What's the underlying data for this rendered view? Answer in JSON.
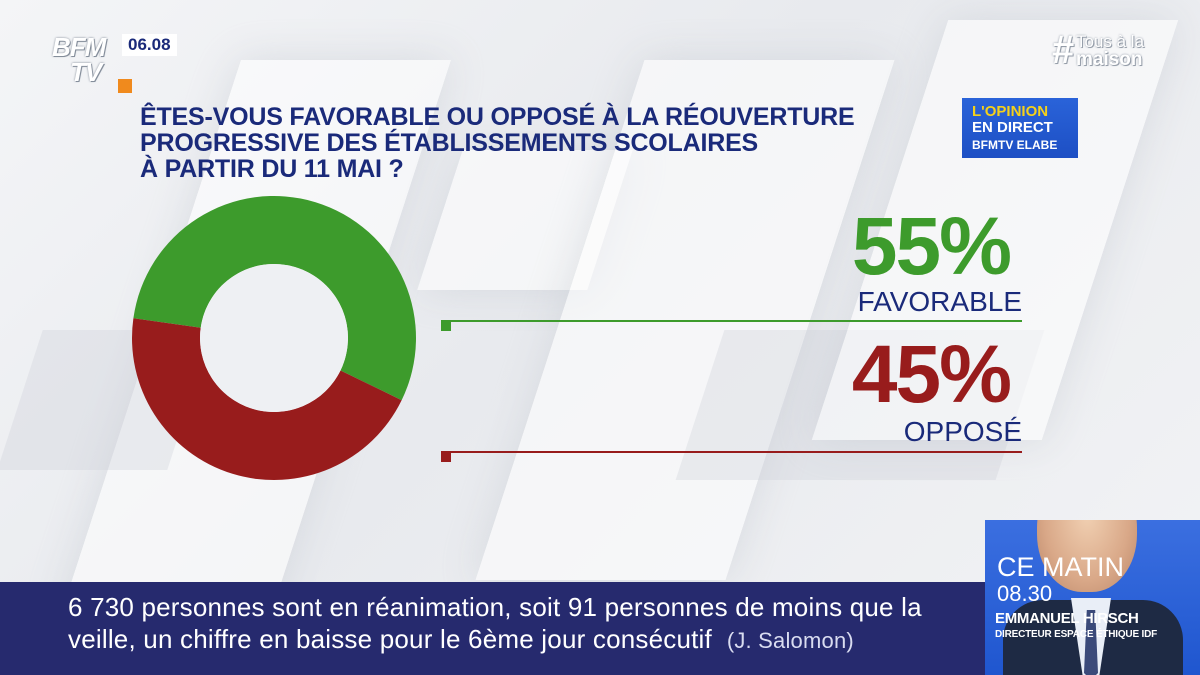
{
  "channel": {
    "logo_line1": "BFM",
    "logo_line2": "TV",
    "clock": "06.08"
  },
  "hashtag": {
    "symbol": "#",
    "line1": "Tous à la",
    "line2": "maison"
  },
  "question": {
    "lines": [
      "ÊTES-VOUS FAVORABLE OU OPPOSÉ À LA RÉOUVERTURE",
      "PROGRESSIVE DES ÉTABLISSEMENTS SCOLAIRES",
      "À PARTIR DU 11 MAI ?"
    ]
  },
  "badge": {
    "line1": "L'OPINION",
    "line2": "EN DIRECT",
    "line3": "BFMTV ELABE"
  },
  "chart_data": {
    "type": "pie",
    "title": "ÊTES-VOUS FAVORABLE OU OPPOSÉ À LA RÉOUVERTURE PROGRESSIVE DES ÉTABLISSEMENTS SCOLAIRES À PARTIR DU 11 MAI ?",
    "categories": [
      "FAVORABLE",
      "OPPOSÉ"
    ],
    "values": [
      55,
      45
    ],
    "value_labels": [
      "55%",
      "45%"
    ],
    "colors": [
      "#3d9b2c",
      "#981c1c"
    ]
  },
  "ticker": {
    "line1": "6 730 personnes sont en réanimation, soit 91 personnes de moins que la",
    "line2": "veille, un chiffre en baisse pour le 6ème jour consécutif",
    "source": "(J. Salomon)"
  },
  "anchor": {
    "show": "CE MATIN",
    "time": "08.30",
    "name": "EMMANUEL HIRSCH",
    "role": "DIRECTEUR ESPACE ÉTHIQUE IDF"
  }
}
